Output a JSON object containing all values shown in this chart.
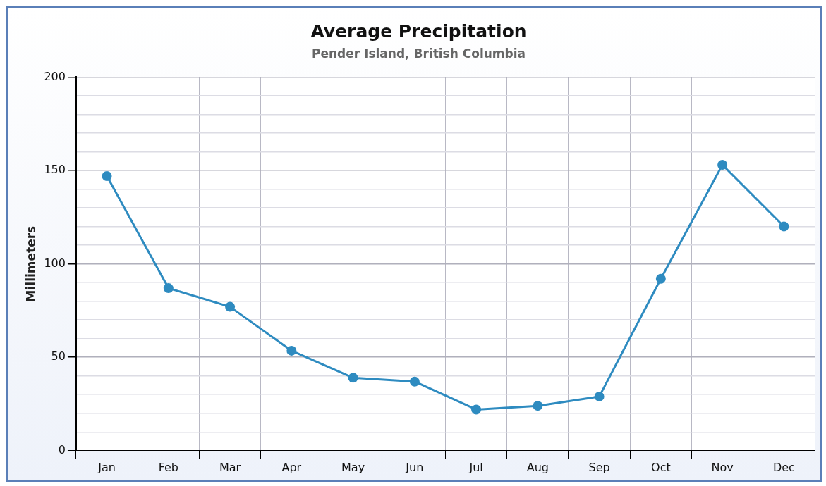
{
  "chart_data": {
    "type": "line",
    "title": "Average Precipitation",
    "subtitle": "Pender Island, British Columbia",
    "ylabel": "Millimeters",
    "categories": [
      "Jan",
      "Feb",
      "Mar",
      "Apr",
      "May",
      "Jun",
      "Jul",
      "Aug",
      "Sep",
      "Oct",
      "Nov",
      "Dec"
    ],
    "series": [
      {
        "color": "#2e8bc0",
        "values": [
          147,
          87,
          77,
          53.5,
          39,
          37,
          22,
          24,
          29,
          92,
          153,
          120
        ]
      }
    ],
    "ylim": [
      0,
      200
    ],
    "yticks": [
      0,
      {
        "value": 10,
        "label": null
      },
      {
        "value": 20,
        "label": null
      },
      {
        "value": 30,
        "label": null
      },
      {
        "value": 40,
        "label": null
      },
      50,
      {
        "value": 60,
        "label": null
      },
      {
        "value": 70,
        "label": null
      },
      {
        "value": 80,
        "label": null
      },
      {
        "value": 90,
        "label": null
      },
      100,
      {
        "value": 110,
        "label": null
      },
      {
        "value": 120,
        "label": null
      },
      {
        "value": 130,
        "label": null
      },
      {
        "value": 140,
        "label": null
      },
      150,
      {
        "value": 160,
        "label": null
      },
      {
        "value": 170,
        "label": null
      },
      {
        "value": 180,
        "label": null
      },
      {
        "value": 190,
        "label": null
      },
      200
    ],
    "grid": true,
    "marker": "circle",
    "line_style": "solid"
  }
}
